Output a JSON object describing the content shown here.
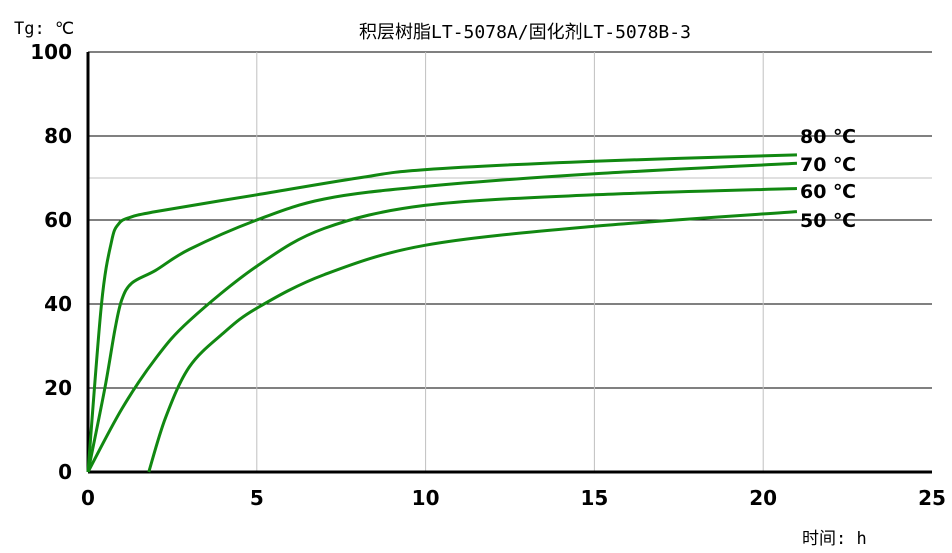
{
  "chart_data": {
    "type": "line",
    "title": "积层树脂LT-5078A/固化剂LT-5078B-3",
    "xlabel": "时间: h",
    "ylabel": "Tg: ℃",
    "xlim": [
      0,
      25
    ],
    "ylim": [
      0,
      100
    ],
    "xticks": [
      0,
      5,
      10,
      15,
      20,
      25
    ],
    "yticks": [
      0,
      20,
      40,
      60,
      80,
      100
    ],
    "grid": true,
    "colors": {
      "series": "#118811",
      "grid_dark": "#000000",
      "grid_light": "#c0c0c0"
    },
    "series": [
      {
        "name": "80 ℃",
        "x": [
          0,
          0.4,
          0.7,
          0.9,
          1.2,
          2,
          5,
          8,
          10,
          15,
          21
        ],
        "y": [
          0,
          40,
          55,
          59,
          60.5,
          62,
          66,
          70,
          72,
          74,
          75.5
        ]
      },
      {
        "name": "70 ℃",
        "x": [
          0,
          0.5,
          0.8,
          1.0,
          1.3,
          2,
          3,
          5,
          7,
          10,
          15,
          21
        ],
        "y": [
          0,
          20,
          34,
          41,
          45,
          48,
          53,
          60,
          65,
          68,
          71,
          73.5
        ]
      },
      {
        "name": "60 ℃",
        "x": [
          0,
          1,
          2,
          3,
          5,
          7,
          10,
          15,
          21
        ],
        "y": [
          0,
          15,
          27,
          36,
          49,
          58,
          63.5,
          66,
          67.5
        ]
      },
      {
        "name": "50 ℃",
        "x": [
          1.8,
          2.3,
          3,
          4,
          5,
          7,
          10,
          15,
          21
        ],
        "y": [
          0,
          13,
          25,
          33,
          39,
          47,
          54,
          58.5,
          62
        ]
      }
    ]
  }
}
